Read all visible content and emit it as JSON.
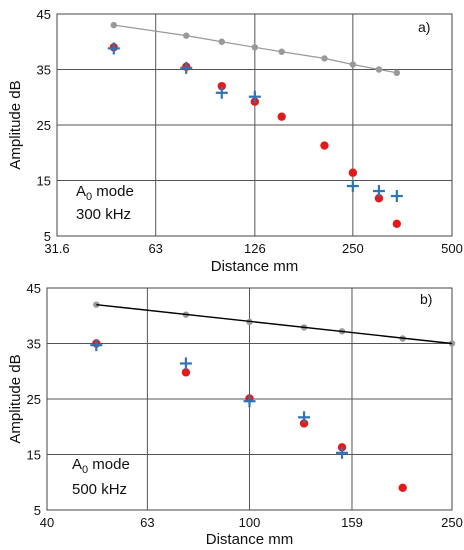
{
  "chart_data": [
    {
      "type": "scatter",
      "panel_label": "a)",
      "annotation_lines": [
        "A0 mode",
        "300 kHz"
      ],
      "annotation_mode_base": "A",
      "annotation_mode_sub": "0",
      "annotation_mode_rest": " mode",
      "annotation_freq": "300 kHz",
      "xlabel": "Distance  mm",
      "ylabel": "Amplitude  dB",
      "x_scale": "log",
      "xlim": [
        31.6,
        500
      ],
      "ylim": [
        5,
        45
      ],
      "x_ticks": [
        31.6,
        63,
        126,
        250,
        500
      ],
      "x_tick_labels": [
        "31.6",
        "63",
        "126",
        "250",
        "500"
      ],
      "y_ticks": [
        5,
        15,
        25,
        35,
        45
      ],
      "y_tick_labels": [
        "5",
        "15",
        "25",
        "35",
        "45"
      ],
      "grid": true,
      "series": [
        {
          "style": "gray-line-markers",
          "color": "#999999",
          "x": [
            47,
            78,
            100,
            126,
            152,
            205,
            250,
            300,
            340
          ],
          "y": [
            43.0,
            41.1,
            40.0,
            39.0,
            38.2,
            37.0,
            35.9,
            35.0,
            34.4
          ]
        },
        {
          "style": "red-dot",
          "color": "#e31a1c",
          "x": [
            47,
            78,
            100,
            126,
            152,
            205,
            250,
            300,
            340
          ],
          "y": [
            39.0,
            35.5,
            32.0,
            29.2,
            26.5,
            21.3,
            16.4,
            11.8,
            7.2
          ]
        },
        {
          "style": "blue-plus",
          "color": "#2e75b6",
          "x": [
            47,
            78,
            100,
            126,
            250,
            300,
            340
          ],
          "y": [
            38.8,
            35.3,
            30.8,
            30.1,
            14.0,
            13.1,
            12.2
          ]
        }
      ]
    },
    {
      "type": "scatter",
      "panel_label": "b)",
      "annotation_lines": [
        "A0 mode",
        "500 kHz"
      ],
      "annotation_mode_base": "A",
      "annotation_mode_sub": "0",
      "annotation_mode_rest": " mode",
      "annotation_freq": "500 kHz",
      "xlabel": "Distance  mm",
      "ylabel": "Amplitude  dB",
      "x_scale": "log",
      "xlim": [
        40,
        250
      ],
      "ylim": [
        5,
        45
      ],
      "x_ticks": [
        40,
        63,
        100,
        159,
        250
      ],
      "x_tick_labels": [
        "40",
        "63",
        "100",
        "159",
        "250"
      ],
      "y_ticks": [
        5,
        15,
        25,
        35,
        45
      ],
      "y_tick_labels": [
        "5",
        "15",
        "25",
        "35",
        "45"
      ],
      "grid": true,
      "series": [
        {
          "style": "gray-markers",
          "color": "#999999",
          "x": [
            50,
            75,
            100,
            128,
            152,
            200,
            250
          ],
          "y": [
            42.0,
            40.2,
            38.9,
            37.9,
            37.2,
            35.9,
            35.0
          ]
        },
        {
          "style": "black-line",
          "color": "#000000",
          "x": [
            50,
            250
          ],
          "y": [
            42.0,
            35.0
          ]
        },
        {
          "style": "red-dot",
          "color": "#e31a1c",
          "x": [
            50,
            75,
            100,
            128,
            152,
            200
          ],
          "y": [
            35.0,
            29.8,
            25.1,
            20.6,
            16.3,
            9.0
          ]
        },
        {
          "style": "blue-plus",
          "color": "#2e75b6",
          "x": [
            50,
            75,
            100,
            128,
            152
          ],
          "y": [
            34.7,
            31.4,
            24.6,
            21.7,
            15.3
          ]
        }
      ]
    }
  ]
}
